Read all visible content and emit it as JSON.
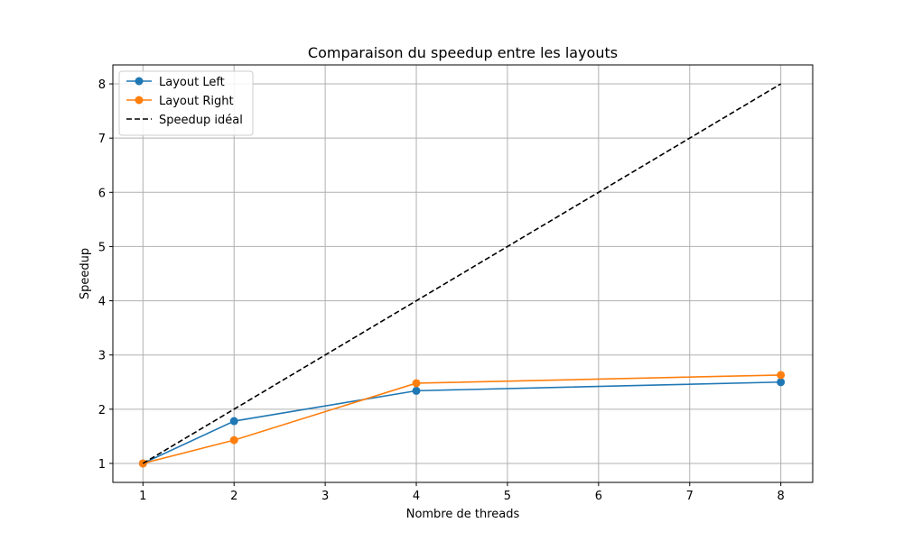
{
  "chart_data": {
    "type": "line",
    "title": "Comparaison du speedup entre les layouts",
    "xlabel": "Nombre de threads",
    "ylabel": "Speedup",
    "xlim": [
      0.67,
      8.35
    ],
    "ylim": [
      0.65,
      8.35
    ],
    "xticks": [
      1,
      2,
      3,
      4,
      5,
      6,
      7,
      8
    ],
    "yticks": [
      1,
      2,
      3,
      4,
      5,
      6,
      7,
      8
    ],
    "grid": true,
    "legend_position": "upper-left",
    "series": [
      {
        "name": "Layout Left",
        "color": "#1f77b4",
        "style": "solid",
        "marker": "circle",
        "x": [
          1,
          2,
          4,
          8
        ],
        "y": [
          1.0,
          1.78,
          2.34,
          2.5
        ]
      },
      {
        "name": "Layout Right",
        "color": "#ff7f0e",
        "style": "solid",
        "marker": "circle",
        "x": [
          1,
          2,
          4,
          8
        ],
        "y": [
          1.0,
          1.43,
          2.48,
          2.63
        ]
      },
      {
        "name": "Speedup idéal",
        "color": "#000000",
        "style": "dashed",
        "marker": "none",
        "x": [
          1,
          2,
          4,
          8
        ],
        "y": [
          1,
          2,
          4,
          8
        ]
      }
    ]
  }
}
